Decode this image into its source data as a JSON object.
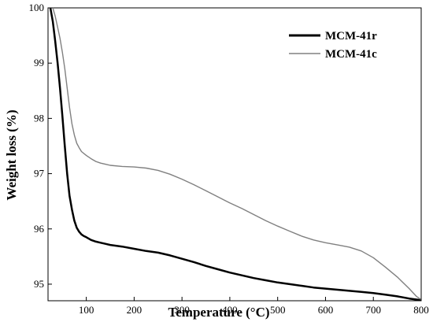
{
  "chart_data": {
    "type": "line",
    "xlabel": "Temperature (°C)",
    "ylabel": "Weight loss (%)",
    "xlim": [
      20,
      800
    ],
    "ylim": [
      94.7,
      100
    ],
    "xticks": [
      100,
      200,
      300,
      400,
      500,
      600,
      700,
      800
    ],
    "yticks": [
      95,
      96,
      97,
      98,
      99,
      100
    ],
    "grid": false,
    "legend_position": "top-right",
    "series": [
      {
        "name": "MCM-41r",
        "color": "#000000",
        "x": [
          25,
          30,
          35,
          40,
          45,
          50,
          55,
          60,
          65,
          70,
          75,
          80,
          85,
          90,
          95,
          100,
          110,
          120,
          130,
          140,
          150,
          175,
          200,
          225,
          250,
          275,
          300,
          325,
          350,
          375,
          400,
          425,
          450,
          475,
          500,
          525,
          550,
          575,
          600,
          625,
          650,
          675,
          700,
          725,
          750,
          775,
          800
        ],
        "y": [
          100,
          99.75,
          99.4,
          99.0,
          98.55,
          98.05,
          97.5,
          97.0,
          96.6,
          96.35,
          96.15,
          96.02,
          95.95,
          95.9,
          95.87,
          95.85,
          95.8,
          95.77,
          95.75,
          95.73,
          95.71,
          95.68,
          95.64,
          95.6,
          95.57,
          95.52,
          95.46,
          95.4,
          95.33,
          95.27,
          95.21,
          95.16,
          95.11,
          95.07,
          95.03,
          95.0,
          94.97,
          94.94,
          94.92,
          94.9,
          94.88,
          94.86,
          94.84,
          94.81,
          94.78,
          94.74,
          94.71
        ]
      },
      {
        "name": "MCM-41c",
        "color": "#808080",
        "x": [
          30,
          35,
          40,
          45,
          50,
          55,
          60,
          65,
          70,
          75,
          80,
          85,
          90,
          100,
          110,
          120,
          130,
          140,
          150,
          175,
          200,
          225,
          250,
          275,
          300,
          325,
          350,
          375,
          400,
          425,
          450,
          475,
          500,
          525,
          550,
          575,
          600,
          625,
          650,
          675,
          700,
          725,
          750,
          775,
          790,
          800
        ],
        "y": [
          100,
          99.85,
          99.65,
          99.45,
          99.2,
          98.9,
          98.55,
          98.2,
          97.9,
          97.7,
          97.55,
          97.47,
          97.4,
          97.33,
          97.27,
          97.22,
          97.19,
          97.17,
          97.15,
          97.13,
          97.12,
          97.1,
          97.06,
          96.99,
          96.9,
          96.8,
          96.69,
          96.58,
          96.47,
          96.37,
          96.26,
          96.15,
          96.05,
          95.96,
          95.87,
          95.8,
          95.75,
          95.71,
          95.67,
          95.6,
          95.48,
          95.31,
          95.13,
          94.92,
          94.78,
          94.72
        ]
      }
    ]
  }
}
